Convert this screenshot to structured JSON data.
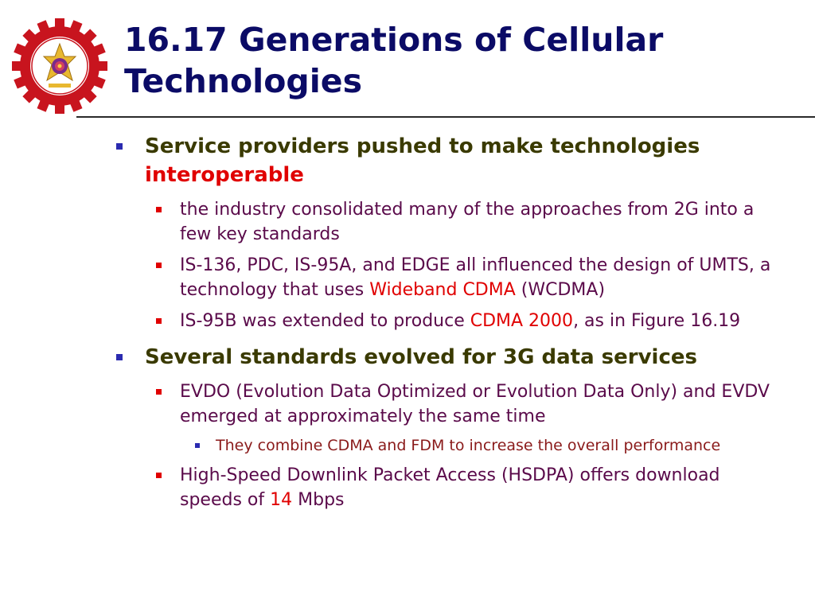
{
  "slide": {
    "title_line1": "16.17 Generations of Cellular",
    "title_line2": "Technologies"
  },
  "bullets": {
    "b1": {
      "text": "Service providers pushed to make technologies",
      "highlight": "interoperable",
      "subs": {
        "s1": {
          "text": "the industry consolidated many of the approaches from 2G into a few key standards"
        },
        "s2": {
          "pre": "IS-136, PDC, IS-95A, and EDGE all influenced the design of UMTS, a technology that uses ",
          "highlight": "Wideband CDMA",
          "post": " (WCDMA)"
        },
        "s3": {
          "pre": "IS-95B was extended to produce ",
          "highlight": "CDMA 2000",
          "post": ", as in Figure 16.19"
        }
      }
    },
    "b2": {
      "text": "Several standards evolved for 3G data services",
      "subs": {
        "s1": {
          "text": "EVDO (Evolution Data Optimized or Evolution Data Only) and EVDV emerged at approximately the same time",
          "subsub": "They combine CDMA and FDM to increase the overall performance"
        },
        "s2": {
          "pre": "High-Speed Downlink Packet Access (HSDPA) offers download speeds of ",
          "highlight": "14",
          "post": " Mbps"
        }
      }
    }
  },
  "colors": {
    "title": "#0b0b66",
    "level1_text": "#3a3a00",
    "level2_text": "#5a0a4a",
    "highlight": "#e00000",
    "logo_red": "#c8141e"
  },
  "icons": {
    "logo": "university-seal-gear-logo"
  }
}
